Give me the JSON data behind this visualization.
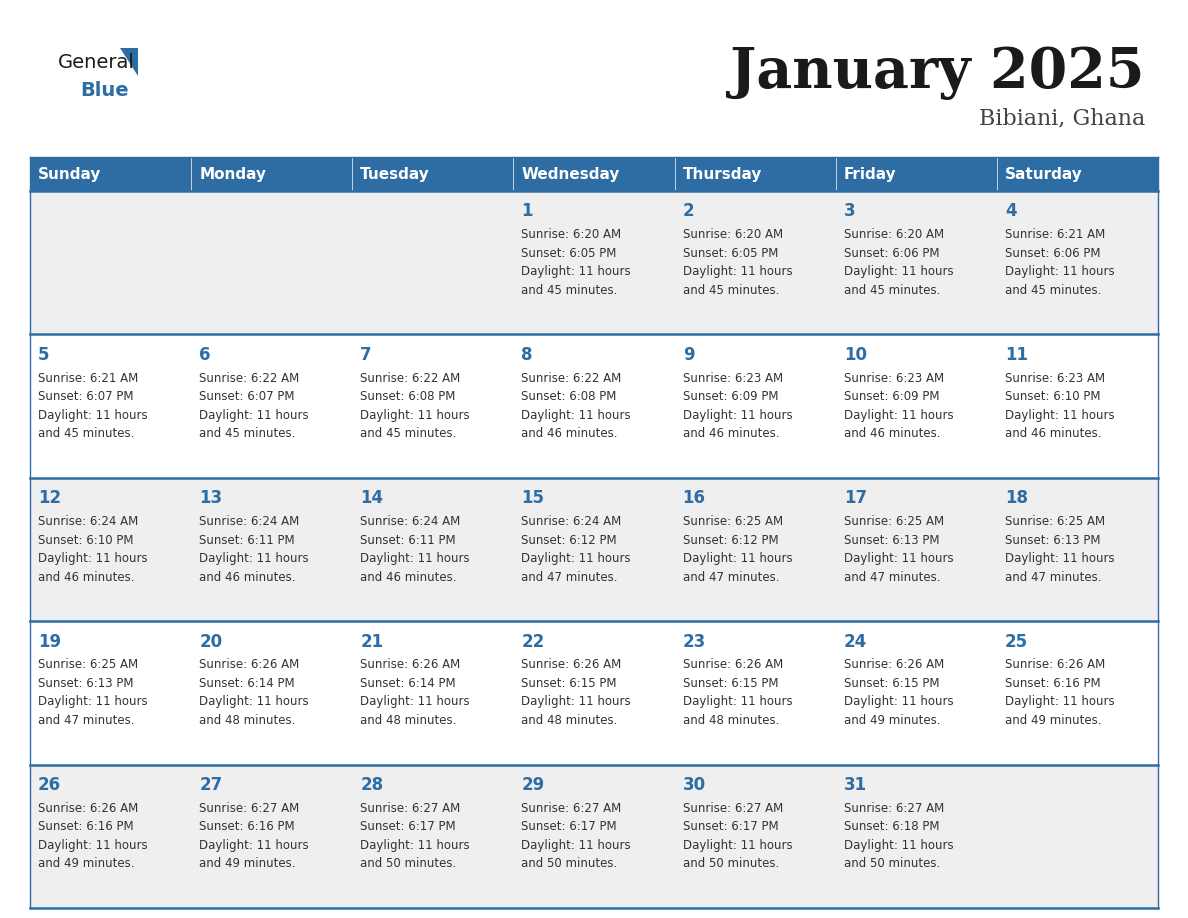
{
  "title": "January 2025",
  "subtitle": "Bibiani, Ghana",
  "header_bg": "#2E6DA4",
  "header_text_color": "#FFFFFF",
  "cell_bg_light": "#EFEFEF",
  "cell_bg_white": "#FFFFFF",
  "day_names": [
    "Sunday",
    "Monday",
    "Tuesday",
    "Wednesday",
    "Thursday",
    "Friday",
    "Saturday"
  ],
  "title_color": "#1a1a1a",
  "subtitle_color": "#444444",
  "day_number_color": "#2E6DA4",
  "info_color": "#333333",
  "border_color": "#2E6DA4",
  "logo_general_color": "#1a1a1a",
  "logo_blue_color": "#2E6DA4",
  "calendar": [
    [
      {
        "day": 0,
        "info": ""
      },
      {
        "day": 0,
        "info": ""
      },
      {
        "day": 0,
        "info": ""
      },
      {
        "day": 1,
        "info": "Sunrise: 6:20 AM\nSunset: 6:05 PM\nDaylight: 11 hours\nand 45 minutes."
      },
      {
        "day": 2,
        "info": "Sunrise: 6:20 AM\nSunset: 6:05 PM\nDaylight: 11 hours\nand 45 minutes."
      },
      {
        "day": 3,
        "info": "Sunrise: 6:20 AM\nSunset: 6:06 PM\nDaylight: 11 hours\nand 45 minutes."
      },
      {
        "day": 4,
        "info": "Sunrise: 6:21 AM\nSunset: 6:06 PM\nDaylight: 11 hours\nand 45 minutes."
      }
    ],
    [
      {
        "day": 5,
        "info": "Sunrise: 6:21 AM\nSunset: 6:07 PM\nDaylight: 11 hours\nand 45 minutes."
      },
      {
        "day": 6,
        "info": "Sunrise: 6:22 AM\nSunset: 6:07 PM\nDaylight: 11 hours\nand 45 minutes."
      },
      {
        "day": 7,
        "info": "Sunrise: 6:22 AM\nSunset: 6:08 PM\nDaylight: 11 hours\nand 45 minutes."
      },
      {
        "day": 8,
        "info": "Sunrise: 6:22 AM\nSunset: 6:08 PM\nDaylight: 11 hours\nand 46 minutes."
      },
      {
        "day": 9,
        "info": "Sunrise: 6:23 AM\nSunset: 6:09 PM\nDaylight: 11 hours\nand 46 minutes."
      },
      {
        "day": 10,
        "info": "Sunrise: 6:23 AM\nSunset: 6:09 PM\nDaylight: 11 hours\nand 46 minutes."
      },
      {
        "day": 11,
        "info": "Sunrise: 6:23 AM\nSunset: 6:10 PM\nDaylight: 11 hours\nand 46 minutes."
      }
    ],
    [
      {
        "day": 12,
        "info": "Sunrise: 6:24 AM\nSunset: 6:10 PM\nDaylight: 11 hours\nand 46 minutes."
      },
      {
        "day": 13,
        "info": "Sunrise: 6:24 AM\nSunset: 6:11 PM\nDaylight: 11 hours\nand 46 minutes."
      },
      {
        "day": 14,
        "info": "Sunrise: 6:24 AM\nSunset: 6:11 PM\nDaylight: 11 hours\nand 46 minutes."
      },
      {
        "day": 15,
        "info": "Sunrise: 6:24 AM\nSunset: 6:12 PM\nDaylight: 11 hours\nand 47 minutes."
      },
      {
        "day": 16,
        "info": "Sunrise: 6:25 AM\nSunset: 6:12 PM\nDaylight: 11 hours\nand 47 minutes."
      },
      {
        "day": 17,
        "info": "Sunrise: 6:25 AM\nSunset: 6:13 PM\nDaylight: 11 hours\nand 47 minutes."
      },
      {
        "day": 18,
        "info": "Sunrise: 6:25 AM\nSunset: 6:13 PM\nDaylight: 11 hours\nand 47 minutes."
      }
    ],
    [
      {
        "day": 19,
        "info": "Sunrise: 6:25 AM\nSunset: 6:13 PM\nDaylight: 11 hours\nand 47 minutes."
      },
      {
        "day": 20,
        "info": "Sunrise: 6:26 AM\nSunset: 6:14 PM\nDaylight: 11 hours\nand 48 minutes."
      },
      {
        "day": 21,
        "info": "Sunrise: 6:26 AM\nSunset: 6:14 PM\nDaylight: 11 hours\nand 48 minutes."
      },
      {
        "day": 22,
        "info": "Sunrise: 6:26 AM\nSunset: 6:15 PM\nDaylight: 11 hours\nand 48 minutes."
      },
      {
        "day": 23,
        "info": "Sunrise: 6:26 AM\nSunset: 6:15 PM\nDaylight: 11 hours\nand 48 minutes."
      },
      {
        "day": 24,
        "info": "Sunrise: 6:26 AM\nSunset: 6:15 PM\nDaylight: 11 hours\nand 49 minutes."
      },
      {
        "day": 25,
        "info": "Sunrise: 6:26 AM\nSunset: 6:16 PM\nDaylight: 11 hours\nand 49 minutes."
      }
    ],
    [
      {
        "day": 26,
        "info": "Sunrise: 6:26 AM\nSunset: 6:16 PM\nDaylight: 11 hours\nand 49 minutes."
      },
      {
        "day": 27,
        "info": "Sunrise: 6:27 AM\nSunset: 6:16 PM\nDaylight: 11 hours\nand 49 minutes."
      },
      {
        "day": 28,
        "info": "Sunrise: 6:27 AM\nSunset: 6:17 PM\nDaylight: 11 hours\nand 50 minutes."
      },
      {
        "day": 29,
        "info": "Sunrise: 6:27 AM\nSunset: 6:17 PM\nDaylight: 11 hours\nand 50 minutes."
      },
      {
        "day": 30,
        "info": "Sunrise: 6:27 AM\nSunset: 6:17 PM\nDaylight: 11 hours\nand 50 minutes."
      },
      {
        "day": 31,
        "info": "Sunrise: 6:27 AM\nSunset: 6:18 PM\nDaylight: 11 hours\nand 50 minutes."
      },
      {
        "day": 0,
        "info": ""
      }
    ]
  ]
}
